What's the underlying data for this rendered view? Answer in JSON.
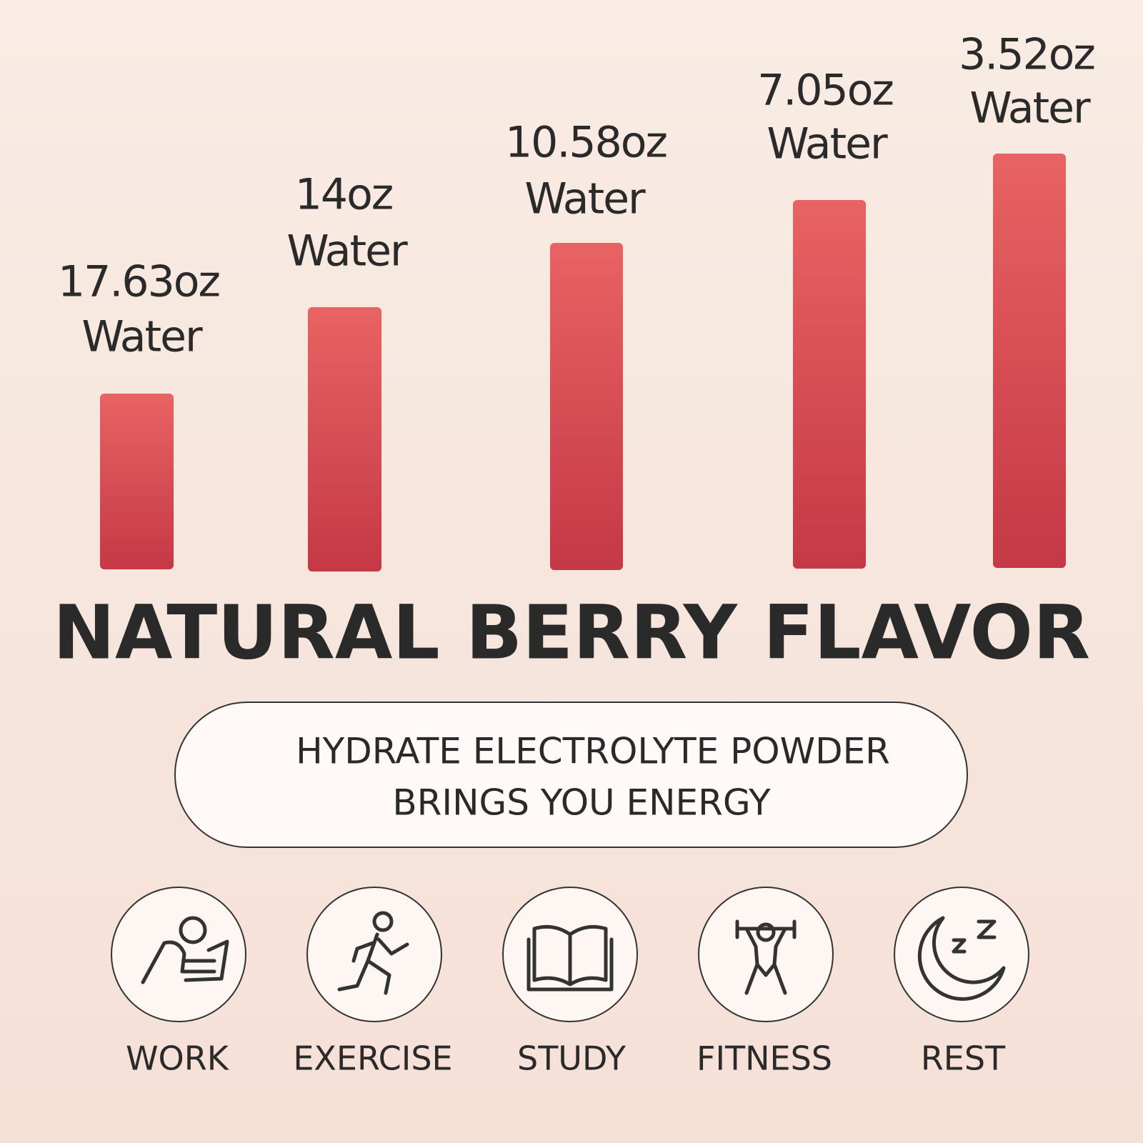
{
  "bars": [
    {
      "amount": "17.63oz",
      "unit": "Water"
    },
    {
      "amount": "14oz",
      "unit": "Water"
    },
    {
      "amount": "10.58oz",
      "unit": "Water"
    },
    {
      "amount": "7.05oz",
      "unit": "Water"
    },
    {
      "amount": "3.52oz",
      "unit": "Water"
    }
  ],
  "title": "NATURAL BERRY FLAVOR",
  "banner": {
    "lines": [
      "HYDRATE ELECTROLYTE POWDER",
      "BRINGS YOU ENERGY"
    ]
  },
  "activities": [
    "WORK",
    "EXERCISE",
    "STUDY",
    "FITNESS",
    "REST"
  ]
}
